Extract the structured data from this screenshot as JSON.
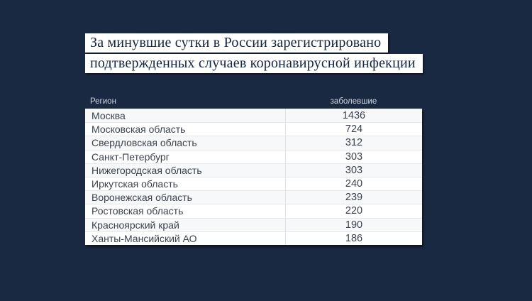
{
  "title": {
    "line1": "За минувшие сутки в России зарегистрировано",
    "line2": "подтвержденных случаев коронавирусной инфекции"
  },
  "table": {
    "headers": {
      "region": "Регион",
      "value": "заболевшие"
    },
    "rows": [
      {
        "region": "Москва",
        "value": "1436"
      },
      {
        "region": "Московская область",
        "value": "724"
      },
      {
        "region": "Свердловская область",
        "value": "312"
      },
      {
        "region": "Санкт-Петербург",
        "value": "303"
      },
      {
        "region": "Нижегородская область",
        "value": "303"
      },
      {
        "region": "Иркутская область",
        "value": "240"
      },
      {
        "region": "Воронежская область",
        "value": "239"
      },
      {
        "region": "Ростовская область",
        "value": "220"
      },
      {
        "region": "Красноярский край",
        "value": "190"
      },
      {
        "region": "Ханты-Мансийский АО",
        "value": "186"
      }
    ]
  },
  "colors": {
    "background": "#1a2942",
    "headline_box": "#ffffff",
    "headline_text": "#152440",
    "table_text": "#3c434d",
    "column_label_text": "#ccd5e0",
    "row_alternate": "#f7f8f9"
  },
  "chart_data": {
    "type": "table",
    "title": "За минувшие сутки в России зарегистрировано подтвержденных случаев коронавирусной инфекции",
    "columns": [
      "Регион",
      "заболевшие"
    ],
    "categories": [
      "Москва",
      "Московская область",
      "Свердловская область",
      "Санкт-Петербург",
      "Нижегородская область",
      "Иркутская область",
      "Воронежская область",
      "Ростовская область",
      "Красноярский край",
      "Ханты-Мансийский АО"
    ],
    "values": [
      1436,
      724,
      312,
      303,
      303,
      240,
      239,
      220,
      190,
      186
    ],
    "layout_hints": {
      "sort": "descending by value",
      "value_column_alignment": "center",
      "zebra_striping": true
    }
  }
}
